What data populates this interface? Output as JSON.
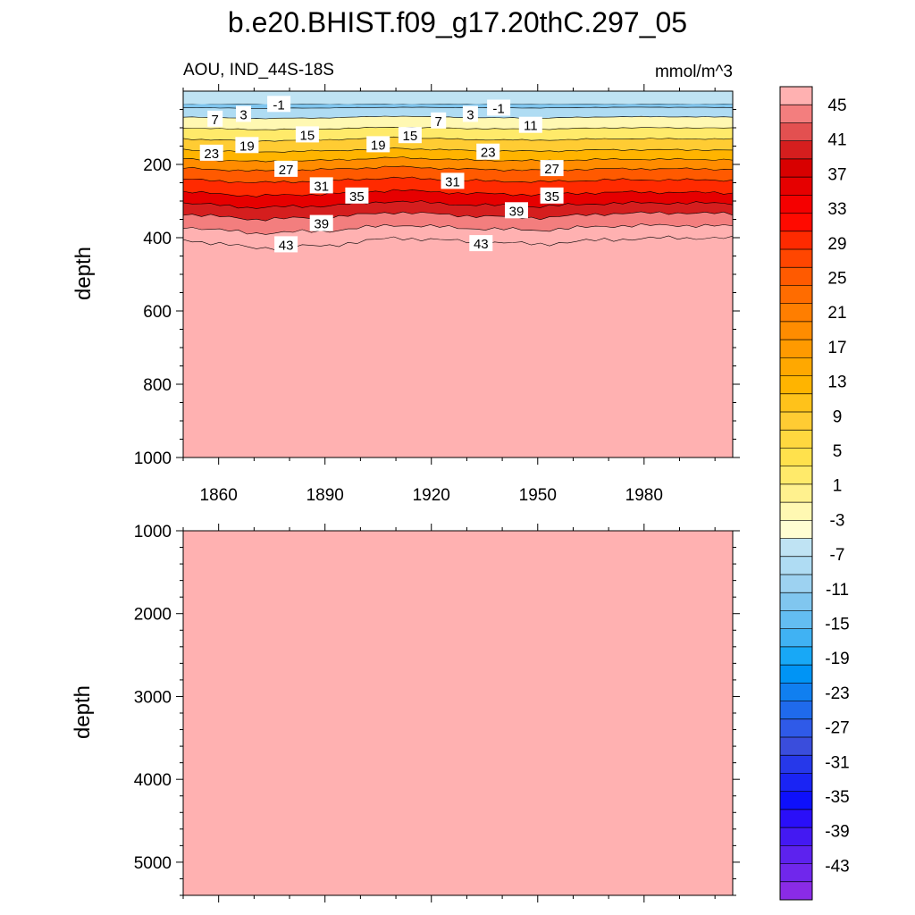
{
  "figure": {
    "title": "b.e20.BHIST.f09_g17.20thC.297_05",
    "left_string": "AOU, IND_44S-18S",
    "right_string": "mmol/m^3"
  },
  "chart_data": [
    {
      "type": "heatmap",
      "panel": "upper",
      "ylabel": "depth",
      "xlim": [
        1850,
        2005
      ],
      "ylim": [
        1000,
        0
      ],
      "x_ticks": [
        1860,
        1890,
        1920,
        1950,
        1980
      ],
      "x_tick_labels": [
        "1860",
        "1890",
        "1920",
        "1950",
        "1980"
      ],
      "y_ticks": [
        200,
        400,
        600,
        800,
        1000
      ],
      "y_tick_labels": [
        "200",
        "400",
        "600",
        "800",
        "1000"
      ],
      "contour_levels": [
        -43,
        -39,
        -35,
        -31,
        -27,
        -23,
        -19,
        -15,
        -11,
        -7,
        -3,
        -1,
        1,
        3,
        5,
        7,
        9,
        11,
        13,
        15,
        17,
        19,
        21,
        23,
        25,
        27,
        29,
        31,
        33,
        35,
        37,
        39,
        41,
        43,
        45
      ],
      "contour_depths": {
        "years": [
          1850,
          1870,
          1890,
          1910,
          1930,
          1950,
          1970,
          1990,
          2005
        ],
        "levels": [
          {
            "level": -1,
            "depths": [
              35,
              35,
              35,
              35,
              35,
              35,
              35,
              35,
              35
            ]
          },
          {
            "level": 1,
            "depths": [
              45,
              47,
              46,
              44,
              45,
              46,
              44,
              44,
              45
            ]
          },
          {
            "level": 5,
            "depths": [
              70,
              75,
              73,
              68,
              72,
              74,
              70,
              70,
              71
            ]
          },
          {
            "level": 9,
            "depths": [
              100,
              105,
              103,
              98,
              102,
              104,
              100,
              100,
              101
            ]
          },
          {
            "level": 13,
            "depths": [
              130,
              136,
              133,
              126,
              132,
              134,
              130,
              130,
              131
            ]
          },
          {
            "level": 17,
            "depths": [
              160,
              166,
              163,
              156,
              162,
              164,
              160,
              160,
              161
            ]
          },
          {
            "level": 21,
            "depths": [
              185,
              192,
              189,
              181,
              188,
              190,
              186,
              186,
              187
            ]
          },
          {
            "level": 25,
            "depths": [
              210,
              218,
              214,
              206,
              213,
              216,
              212,
              212,
              213
            ]
          },
          {
            "level": 29,
            "depths": [
              240,
              250,
              245,
              236,
              244,
              248,
              242,
              242,
              243
            ]
          },
          {
            "level": 33,
            "depths": [
              275,
              286,
              281,
              270,
              279,
              283,
              276,
              276,
              278
            ]
          },
          {
            "level": 37,
            "depths": [
              305,
              318,
              313,
              300,
              310,
              315,
              306,
              305,
              307
            ]
          },
          {
            "level": 41,
            "depths": [
              335,
              350,
              345,
              330,
              340,
              346,
              334,
              332,
              335
            ]
          },
          {
            "level": 43,
            "depths": [
              370,
              388,
              382,
              365,
              374,
              380,
              368,
              366,
              369
            ]
          },
          {
            "level": 45,
            "depths": [
              405,
              428,
              422,
              400,
              410,
              418,
              405,
              400,
              402
            ]
          }
        ]
      },
      "contour_labels": [
        {
          "value": "-1",
          "x": 1877,
          "y": 35
        },
        {
          "value": "7",
          "x": 1859,
          "y": 75
        },
        {
          "value": "3",
          "x": 1867,
          "y": 62
        },
        {
          "value": "15",
          "x": 1885,
          "y": 118
        },
        {
          "value": "19",
          "x": 1868,
          "y": 147
        },
        {
          "value": "23",
          "x": 1858,
          "y": 168
        },
        {
          "value": "27",
          "x": 1879,
          "y": 212
        },
        {
          "value": "31",
          "x": 1889,
          "y": 257
        },
        {
          "value": "35",
          "x": 1899,
          "y": 285
        },
        {
          "value": "39",
          "x": 1889,
          "y": 360
        },
        {
          "value": "43",
          "x": 1879,
          "y": 418
        },
        {
          "value": "19",
          "x": 1905,
          "y": 145
        },
        {
          "value": "15",
          "x": 1914,
          "y": 120
        },
        {
          "value": "7",
          "x": 1922,
          "y": 80
        },
        {
          "value": "3",
          "x": 1931,
          "y": 62
        },
        {
          "value": "-1",
          "x": 1939,
          "y": 45
        },
        {
          "value": "11",
          "x": 1948,
          "y": 92
        },
        {
          "value": "23",
          "x": 1936,
          "y": 165
        },
        {
          "value": "27",
          "x": 1954,
          "y": 210
        },
        {
          "value": "31",
          "x": 1926,
          "y": 245
        },
        {
          "value": "35",
          "x": 1954,
          "y": 285
        },
        {
          "value": "39",
          "x": 1944,
          "y": 325
        },
        {
          "value": "43",
          "x": 1934,
          "y": 415
        }
      ]
    },
    {
      "type": "heatmap",
      "panel": "lower",
      "ylabel": "depth",
      "xlim": [
        1850,
        2005
      ],
      "ylim": [
        5400,
        1000
      ],
      "y_ticks": [
        1000,
        2000,
        3000,
        4000,
        5000
      ],
      "y_tick_labels": [
        "1000",
        "2000",
        "3000",
        "4000",
        "5000"
      ],
      "fill_level": 45
    }
  ],
  "colorbar": {
    "levels": [
      -43,
      -39,
      -35,
      -31,
      -27,
      -23,
      -19,
      -15,
      -11,
      -7,
      -3,
      -1,
      1,
      3,
      5,
      7,
      9,
      11,
      13,
      15,
      17,
      19,
      21,
      23,
      25,
      27,
      29,
      31,
      33,
      35,
      37,
      39,
      41,
      43,
      45
    ],
    "labels": [
      "45",
      "41",
      "37",
      "33",
      "29",
      "25",
      "21",
      "17",
      "13",
      "9",
      "5",
      "1",
      "-3",
      "-7",
      "-11",
      "-15",
      "-19",
      "-23",
      "-27",
      "-31",
      "-35",
      "-39",
      "-43"
    ],
    "colors_top_to_bottom": [
      "#ffb1b1",
      "#f37e7e",
      "#e35050",
      "#d51e1e",
      "#d80000",
      "#e60000",
      "#f50000",
      "#ff0a00",
      "#ff2a00",
      "#ff4600",
      "#ff5a00",
      "#ff6c00",
      "#ff7e00",
      "#ff8c00",
      "#ff9a00",
      "#ffa800",
      "#ffb400",
      "#ffc21a",
      "#ffcc33",
      "#ffd83f",
      "#ffe14c",
      "#ffea6a",
      "#fff18e",
      "#fff8b2",
      "#fffdd2",
      "#bfe3f3",
      "#afdcf3",
      "#9dd2f1",
      "#80c6ef",
      "#63bdf2",
      "#40b2f3",
      "#18a8f6",
      "#0094f5",
      "#107ff0",
      "#1f6aec",
      "#2f5ae8",
      "#3a4ddc",
      "#2638ea",
      "#1a24f4",
      "#0e10fb",
      "#2a0ff8",
      "#4419f2",
      "#5d22ee",
      "#7027ec",
      "#8a2be6"
    ]
  }
}
